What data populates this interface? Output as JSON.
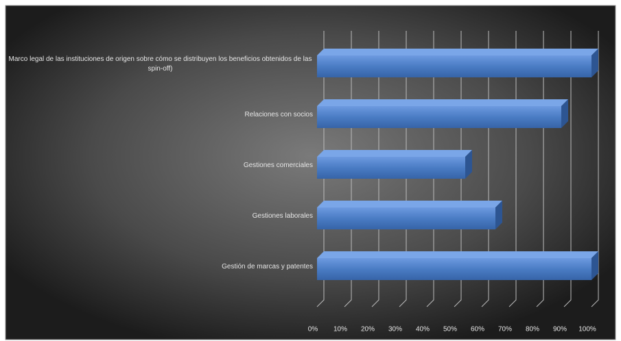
{
  "chart_data": {
    "type": "bar3d_horizontal",
    "categories": [
      "Marco legal de las instituciones de origen sobre cómo se distribuyen los beneficios obtenidos de las spin-off)",
      "Relaciones con socios",
      "Gestiones comerciales",
      "Gestiones laborales",
      "Gestión de marcas y patentes"
    ],
    "values": [
      100,
      89,
      54,
      65,
      100
    ],
    "color": "#4a7cc4",
    "xlim": [
      0,
      100
    ],
    "xticks": [
      {
        "value": 0,
        "label": "0%"
      },
      {
        "value": 10,
        "label": "10%"
      },
      {
        "value": 20,
        "label": "20%"
      },
      {
        "value": 30,
        "label": "30%"
      },
      {
        "value": 40,
        "label": "40%"
      },
      {
        "value": 50,
        "label": "50%"
      },
      {
        "value": 60,
        "label": "60%"
      },
      {
        "value": 70,
        "label": "70%"
      },
      {
        "value": 80,
        "label": "80%"
      },
      {
        "value": 90,
        "label": "90%"
      },
      {
        "value": 100,
        "label": "100%"
      }
    ],
    "grid": true
  }
}
